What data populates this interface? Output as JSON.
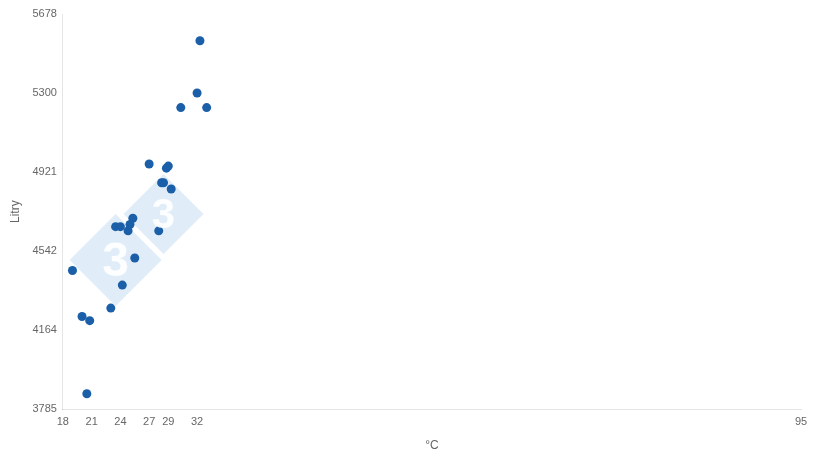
{
  "chart_data": {
    "type": "scatter",
    "x": [
      19.0,
      20.0,
      20.5,
      20.8,
      23.0,
      23.5,
      24.0,
      24.2,
      24.8,
      25.0,
      25.3,
      25.5,
      27.0,
      28.0,
      28.3,
      28.5,
      28.8,
      29.0,
      29.3,
      30.3,
      32.0,
      32.3,
      33.0
    ],
    "series": [
      {
        "values": [
          4450,
          4230,
          3860,
          4210,
          4270,
          4660,
          4660,
          4380,
          4640,
          4670,
          4700,
          4510,
          4960,
          4640,
          4870,
          4870,
          4940,
          4950,
          4840,
          5230,
          5300,
          5550,
          5230
        ],
        "color": "#1a5fa8",
        "marker": "circle"
      }
    ],
    "xlabel": "°C",
    "ylabel": "Litry",
    "xlim": [
      18,
      95
    ],
    "ylim": [
      3785,
      5678
    ],
    "xticks": [
      18,
      21,
      24,
      27,
      29,
      32,
      95
    ],
    "yticks": [
      3785,
      4164,
      4542,
      4921,
      5300,
      5678
    ],
    "grid": false,
    "annotations": [
      {
        "text": "3",
        "x": 23.5,
        "y": 4500,
        "color": "#d0e4f5",
        "marker": "diamond"
      },
      {
        "text": "3",
        "x": 28.5,
        "y": 4720,
        "color": "#d0e4f5",
        "marker": "diamond"
      }
    ]
  }
}
